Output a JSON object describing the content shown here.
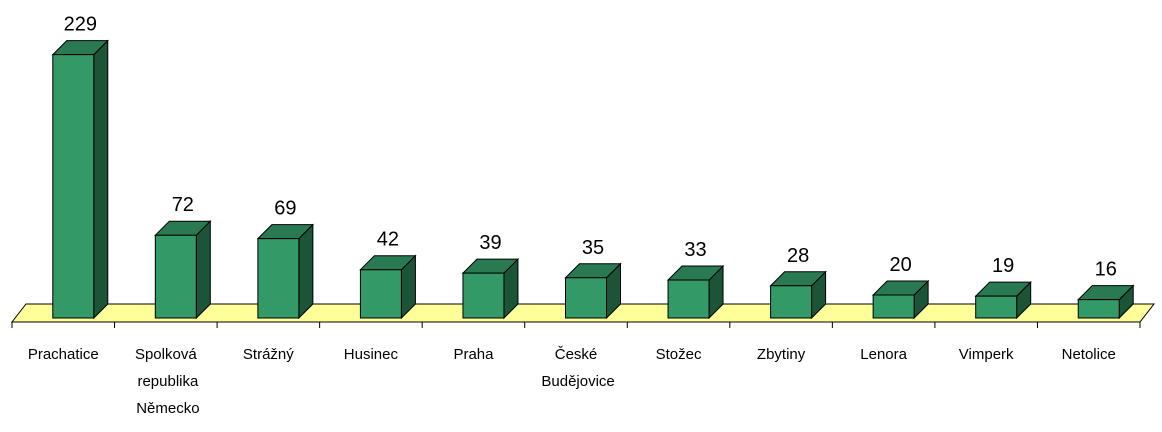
{
  "chart_data": {
    "type": "bar3d",
    "categories": [
      "Prachatice",
      "Spolková republika Německo",
      "Strážný",
      "Husinec",
      "Praha",
      "České Budějovice",
      "Stožec",
      "Zbytiny",
      "Lenora",
      "Vimperk",
      "Netolice"
    ],
    "values": [
      229,
      72,
      69,
      42,
      39,
      35,
      33,
      28,
      20,
      19,
      16
    ],
    "color": "#339966",
    "ylim": [
      0,
      250
    ]
  }
}
